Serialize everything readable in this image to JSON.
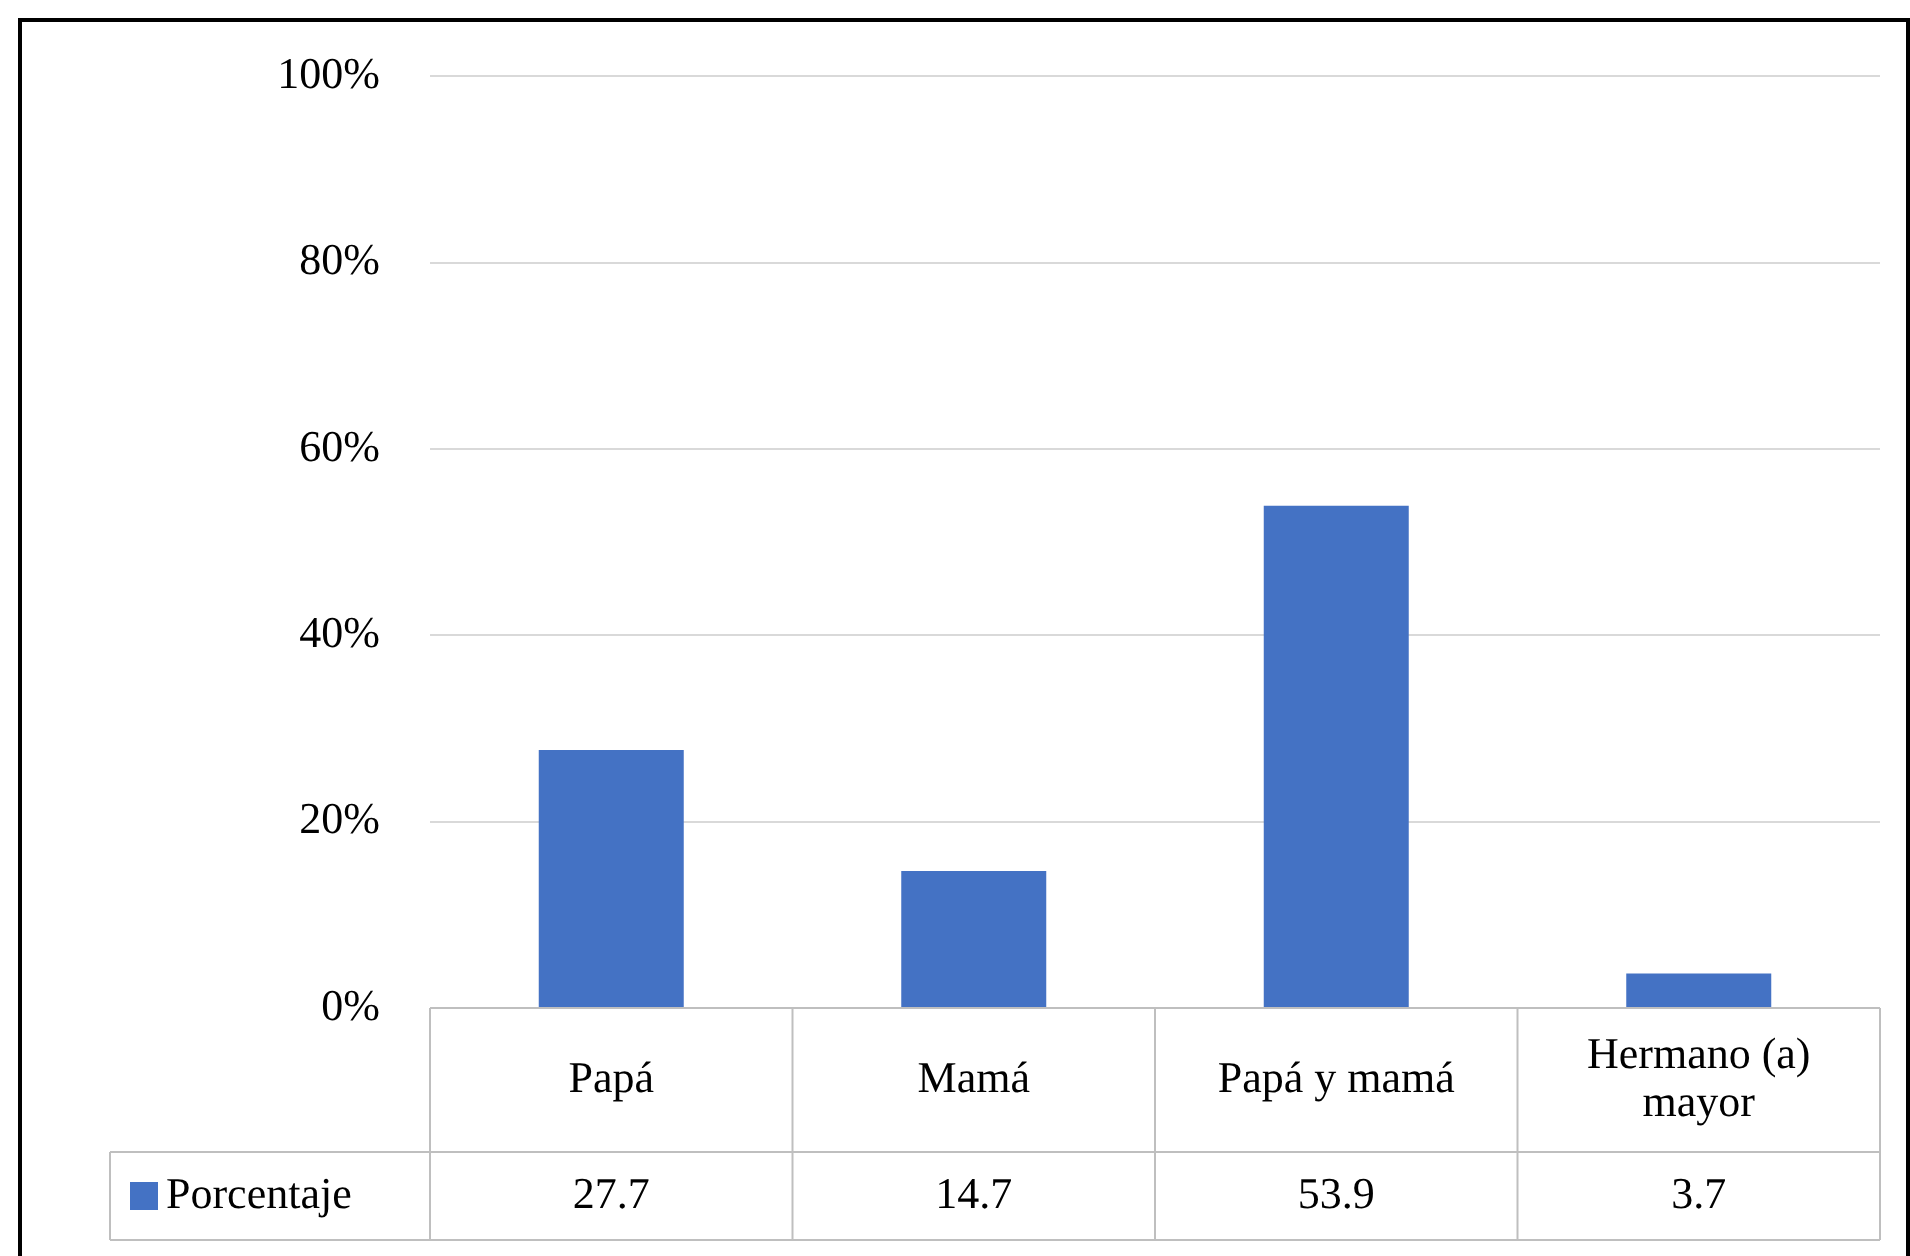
{
  "chart_data": {
    "type": "bar",
    "categories": [
      "Papá",
      "Mamá",
      "Papá y mamá",
      "Hermano (a) mayor"
    ],
    "series": [
      {
        "name": "Porcentaje",
        "color": "#4472c4",
        "values": [
          27.7,
          14.7,
          53.9,
          3.7
        ]
      }
    ],
    "ylim": [
      0,
      100
    ],
    "yticks": [
      {
        "value": 0,
        "label": "0%"
      },
      {
        "value": 20,
        "label": "20%"
      },
      {
        "value": 40,
        "label": "40%"
      },
      {
        "value": 60,
        "label": "60%"
      },
      {
        "value": 80,
        "label": "80%"
      },
      {
        "value": 100,
        "label": "100%"
      }
    ],
    "grid": "y",
    "legend": "bottom",
    "data_labels": true
  }
}
